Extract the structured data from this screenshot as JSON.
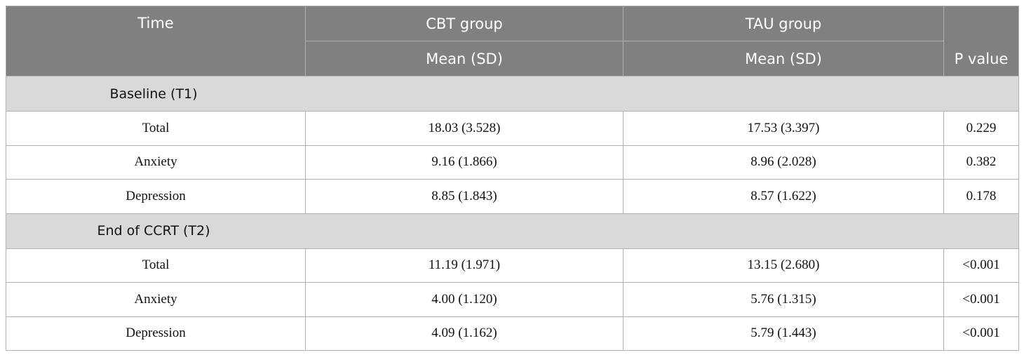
{
  "table": {
    "header": {
      "time": "Time",
      "groups": [
        "CBT group",
        "TAU group"
      ],
      "subheaders": [
        "Mean (SD)",
        "Mean (SD)"
      ],
      "p_value": "P value"
    },
    "sections": [
      {
        "label": "Baseline (T1)",
        "rows": [
          [
            "Total",
            "18.03 (3.528)",
            "17.53 (3.397)",
            "0.229"
          ],
          [
            "Anxiety",
            "9.16 (1.866)",
            "8.96 (2.028)",
            "0.382"
          ],
          [
            "Depression",
            "8.85 (1.843)",
            "8.57 (1.622)",
            "0.178"
          ]
        ]
      },
      {
        "label": "End of CCRT (T2)",
        "rows": [
          [
            "Total",
            "11.19 (1.971)",
            "13.15 (2.680)",
            "<0.001"
          ],
          [
            "Anxiety",
            "4.00 (1.120)",
            "5.76 (1.315)",
            "<0.001"
          ],
          [
            "Depression",
            "4.09 (1.162)",
            "5.79 (1.443)",
            "<0.001"
          ]
        ]
      }
    ]
  }
}
